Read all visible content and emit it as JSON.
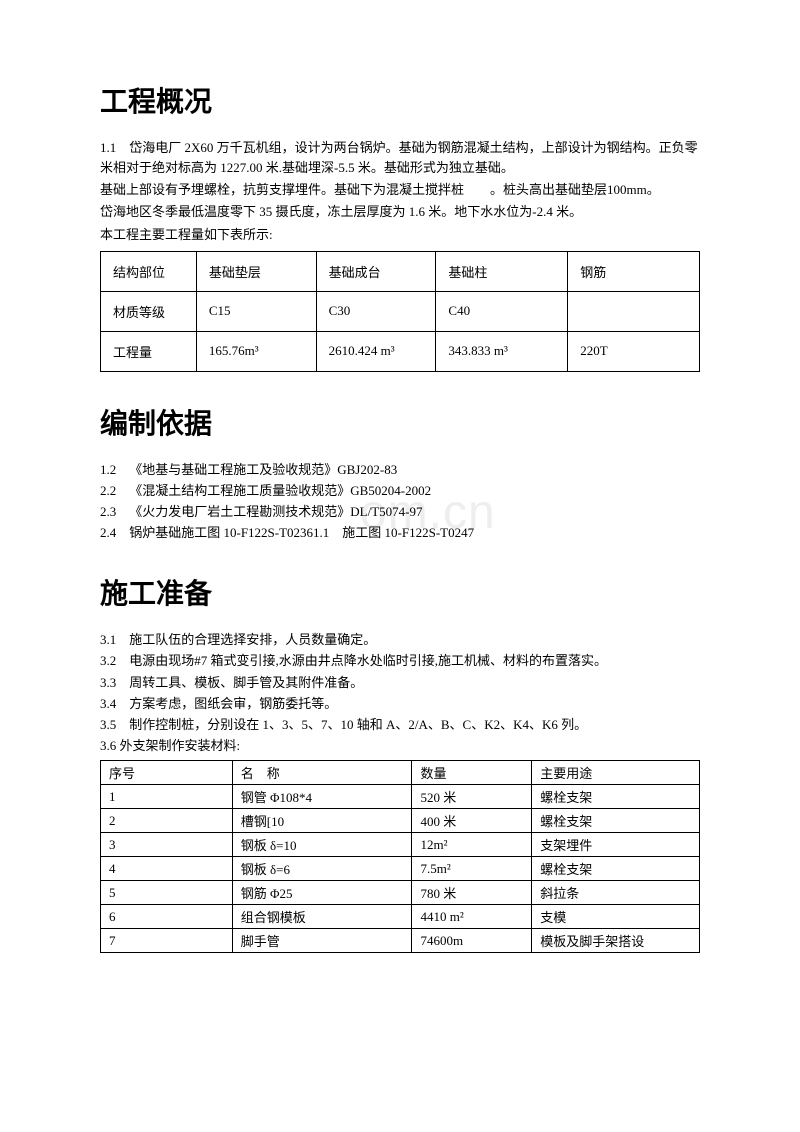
{
  "watermark": "om.cn",
  "section1": {
    "title": "工程概况",
    "p1": "1.1 岱海电厂 2X60 万千瓦机组，设计为两台锅炉。基础为钢筋混凝土结构，上部设计为钢结构。正负零米相对于绝对标高为 1227.00 米.基础埋深-5.5 米。基础形式为独立基础。",
    "p2": "基础上部设有予埋螺栓，抗剪支撑埋件。基础下为混凝土搅拌桩  。桩头高出基础垫层100mm。",
    "p3": "岱海地区冬季最低温度零下 35 摄氏度，冻土层厚度为 1.6 米。地下水水位为-2.4 米。",
    "p4": "本工程主要工程量如下表所示:",
    "table": {
      "r1": [
        "结构部位",
        "基础垫层",
        "基础成台",
        "基础柱",
        "钢筋"
      ],
      "r2": [
        "材质等级",
        "C15",
        "C30",
        "C40",
        ""
      ],
      "r3": [
        "工程量",
        "165.76m³",
        "2610.424 m³",
        "343.833 m³",
        "220T"
      ]
    }
  },
  "section2": {
    "title": "编制依据",
    "items": [
      "1.2 《地基与基础工程施工及验收规范》GBJ202-83",
      "2.2 《混凝土结构工程施工质量验收规范》GB50204-2002",
      "2.3 《火力发电厂岩土工程勘测技术规范》DL/T5074-97",
      "2.4 锅炉基础施工图 10-F122S-T02361.1 施工图 10-F122S-T0247"
    ]
  },
  "section3": {
    "title": "施工准备",
    "items": [
      "3.1 施工队伍的合理选择安排，人员数量确定。",
      "3.2 电源由现场#7 箱式变引接,水源由井点降水处临时引接,施工机械、材料的布置落实。",
      "3.3 周转工具、模板、脚手管及其附件准备。",
      "3.4 方案考虑，图纸会审，钢筋委托等。",
      "3.5 制作控制桩，分别设在 1、3、5、7、10 轴和 A、2/A、B、C、K2、K4、K6 列。",
      "3.6 外支架制作安装材料:"
    ],
    "table": {
      "head": [
        "序号",
        "名 称",
        "数量",
        "主要用途"
      ],
      "rows": [
        [
          "1",
          "钢管 Φ108*4",
          "520 米",
          "螺栓支架"
        ],
        [
          "2",
          "槽钢[10",
          "400 米",
          "螺栓支架"
        ],
        [
          "3",
          "钢板 δ=10",
          "12m²",
          "支架埋件"
        ],
        [
          "4",
          "钢板 δ=6",
          "7.5m²",
          "螺栓支架"
        ],
        [
          "5",
          "钢筋 Φ25",
          "780 米",
          "斜拉条"
        ],
        [
          "6",
          "组合钢模板",
          "4410 m²",
          "支模"
        ],
        [
          "7",
          "脚手管",
          "74600m",
          "模板及脚手架搭设"
        ]
      ]
    }
  }
}
